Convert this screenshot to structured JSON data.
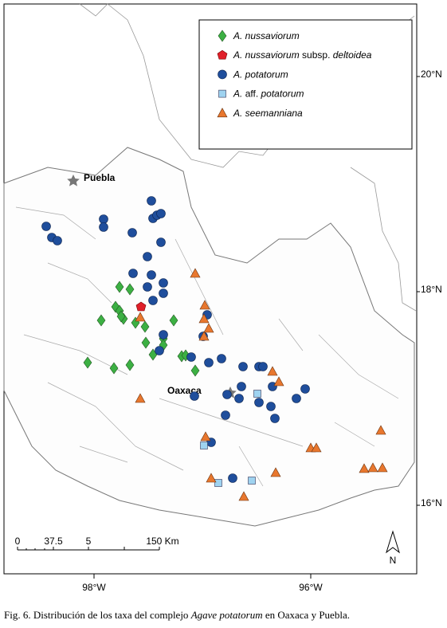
{
  "legend": {
    "items": [
      [
        "A. nussaviorum"
      ],
      [
        "A. nussaviorum",
        "subsp.",
        "deltoidea"
      ],
      [
        "A. potatorum"
      ],
      [
        "A.",
        "aff.",
        "potatorum"
      ],
      [
        "A. seemanniana"
      ]
    ]
  },
  "places": {
    "puebla": "Puebla",
    "oaxaca": "Oaxaca"
  },
  "latitude_labels": [
    "20°N",
    "18°N",
    "16°N"
  ],
  "longitude_labels": [
    "98°W",
    "96°W"
  ],
  "scale_bar": {
    "labels": [
      "0",
      "37.5",
      "5",
      "150 Km"
    ]
  },
  "north_arrow": "N",
  "caption": {
    "prefix": "Fig. 6. Distribución de los taxa del complejo",
    "genus": "Agave potatorum",
    "suffix": "en Oaxaca y Puebla."
  }
}
